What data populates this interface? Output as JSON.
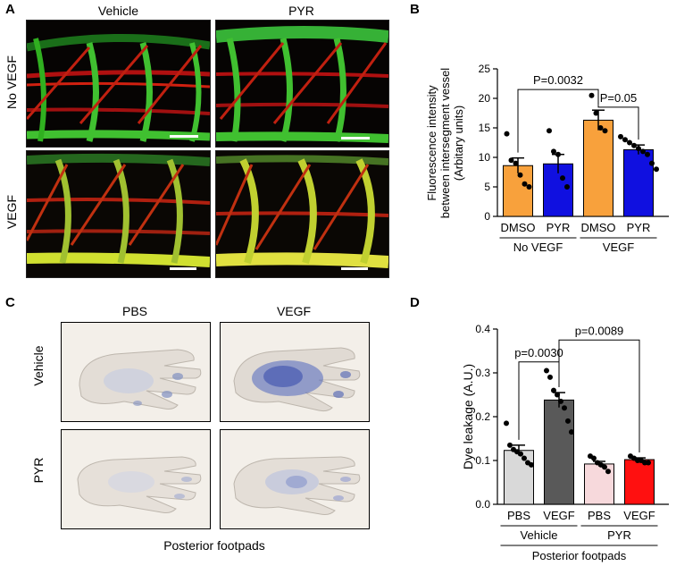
{
  "panels": {
    "A": {
      "label": "A",
      "columns": [
        "Vehicle",
        "PYR"
      ],
      "rows": [
        "No VEGF",
        "VEGF"
      ]
    },
    "B": {
      "label": "B"
    },
    "C": {
      "label": "C",
      "columns": [
        "PBS",
        "VEGF"
      ],
      "rows": [
        "Vehicle",
        "PYR"
      ],
      "caption": "Posterior footpads"
    },
    "D": {
      "label": "D"
    }
  },
  "colors": {
    "orange": "#f8a13c",
    "blue": "#1010e0",
    "light_gray": "#d9d9d9",
    "dark_gray": "#595959",
    "pink": "#f7d9dc",
    "red": "#ff1010"
  },
  "chart_data": [
    {
      "id": "B",
      "type": "bar",
      "ylabel": "Fluorescence intensity between intersegment vessel (Arbitary units)",
      "ylabel_lines": [
        "Fluorescence intensity",
        "between intersegment vessel",
        "(Arbitary units)"
      ],
      "ylim": [
        0,
        25
      ],
      "yticks": [
        0,
        5,
        10,
        15,
        20,
        25
      ],
      "categories": [
        "DMSO",
        "PYR",
        "DMSO",
        "PYR"
      ],
      "groups": [
        {
          "label": "No VEGF",
          "span": [
            0,
            1
          ]
        },
        {
          "label": "VEGF",
          "span": [
            2,
            3
          ]
        }
      ],
      "values": [
        8.6,
        8.9,
        16.3,
        11.3
      ],
      "errors": [
        1.3,
        1.6,
        1.7,
        0.8
      ],
      "bar_colors": [
        "#f8a13c",
        "#1010e0",
        "#f8a13c",
        "#1010e0"
      ],
      "points": [
        [
          14.0,
          9.5,
          9.0,
          7.0,
          5.5,
          5.0
        ],
        [
          14.5,
          11.0,
          10.5,
          6.5,
          5.0
        ],
        [
          20.5,
          17.5,
          15.0,
          14.5
        ],
        [
          13.5,
          13.0,
          12.5,
          12.0,
          11.5,
          11.0,
          10.5,
          9.0,
          8.0
        ]
      ],
      "annotations": [
        {
          "text": "P=0.0032",
          "from": 0,
          "to": 2,
          "y": 21.5
        },
        {
          "text": "P=0.05",
          "from": 2,
          "to": 3,
          "y": 18.5
        }
      ]
    },
    {
      "id": "D",
      "type": "bar",
      "ylabel": "Dye leakage (A.U.)",
      "ylim": [
        0,
        0.4
      ],
      "yticks": [
        "0.0",
        "0.1",
        "0.2",
        "0.3",
        "0.4"
      ],
      "categories": [
        "PBS",
        "VEGF",
        "PBS",
        "VEGF"
      ],
      "groups": [
        {
          "label": "Vehicle",
          "span": [
            0,
            1
          ]
        },
        {
          "label": "PYR",
          "span": [
            2,
            3
          ]
        }
      ],
      "xlabel": "Posterior footpads",
      "values": [
        0.123,
        0.238,
        0.092,
        0.102
      ],
      "errors": [
        0.012,
        0.017,
        0.006,
        0.004
      ],
      "bar_colors": [
        "#d9d9d9",
        "#595959",
        "#f7d9dc",
        "#ff1010"
      ],
      "points": [
        [
          0.185,
          0.135,
          0.125,
          0.12,
          0.115,
          0.105,
          0.095,
          0.09
        ],
        [
          0.305,
          0.29,
          0.26,
          0.25,
          0.235,
          0.22,
          0.19,
          0.165
        ],
        [
          0.11,
          0.105,
          0.095,
          0.09,
          0.085,
          0.075
        ],
        [
          0.11,
          0.105,
          0.1,
          0.1,
          0.095,
          0.095
        ]
      ],
      "annotations": [
        {
          "text": "p=0.0030",
          "from": 0,
          "to": 1,
          "y": 0.325
        },
        {
          "text": "p=0.0089",
          "from": 1,
          "to": 3,
          "y": 0.375
        }
      ]
    }
  ]
}
